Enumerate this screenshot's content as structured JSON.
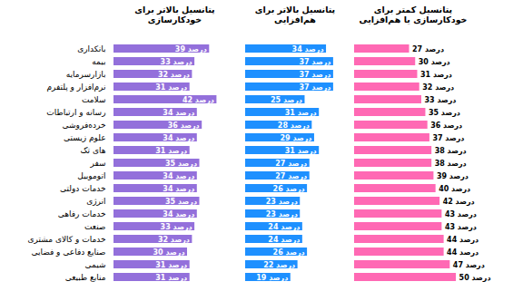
{
  "chart_data": [
    {
      "type": "bar",
      "orientation": "horizontal",
      "title": "پتانسیل بالاتر برای خودکارسازی",
      "categories": [
        "بانکداری",
        "بیمه",
        "بازارسرمایه",
        "نرم‌افزار و پلتفرم",
        "سلامت",
        "رسانه و ارتباطات",
        "خرده‌فروشی",
        "علوم زیستی",
        "های تک",
        "سفر",
        "اتوموبیل",
        "خدمات دولتی",
        "انرژی",
        "خدمات رفاهی",
        "صنعت",
        "خدمات و کالای مشتری",
        "صنایع دفاعی و فضایی",
        "شیمی",
        "منابع طبیعی"
      ],
      "values": [
        39,
        33,
        32,
        31,
        42,
        34,
        36,
        34,
        31,
        35,
        34,
        34,
        35,
        34,
        33,
        32,
        30,
        31,
        31
      ],
      "value_labels": [
        "39 درصد",
        "33 درصد",
        "32 درصد",
        "31 درصد",
        "42 درصد",
        "34 درصد",
        "36 درصد",
        "34 درصد",
        "31 درصد",
        "35 درصد",
        "34 درصد",
        "34 درصد",
        "35 درصد",
        "34 درصد",
        "33 درصد",
        "32 درصد",
        "30 درصد",
        "31 درصد",
        "31 درصد"
      ],
      "color": "#9370db",
      "xlim": [
        0,
        50
      ],
      "data_labels": true,
      "tick_labels": "y"
    },
    {
      "type": "bar",
      "orientation": "horizontal",
      "title": "پتانسیل بالاتر برای هم‌افزایی",
      "categories": [
        "بانکداری",
        "بیمه",
        "بازارسرمایه",
        "نرم‌افزار و پلتفرم",
        "سلامت",
        "رسانه و ارتباطات",
        "خرده‌فروشی",
        "علوم زیستی",
        "های تک",
        "سفر",
        "اتوموبیل",
        "خدمات دولتی",
        "انرژی",
        "خدمات رفاهی",
        "صنعت",
        "خدمات و کالای مشتری",
        "صنایع دفاعی و فضایی",
        "شیمی",
        "منابع طبیعی"
      ],
      "values": [
        34,
        37,
        37,
        37,
        25,
        31,
        28,
        29,
        31,
        27,
        27,
        26,
        23,
        23,
        24,
        24,
        26,
        22,
        19
      ],
      "value_labels": [
        "34 درصد",
        "37 درصد",
        "37 درصد",
        "37 درصد",
        "25 درصد",
        "31 درصد",
        "28 درصد",
        "29 درصد",
        "31 درصد",
        "27 درصد",
        "27 درصد",
        "26 درصد",
        "23 درصد",
        "23 درصد",
        "24 درصد",
        "24 درصد",
        "26 درصد",
        "22 درصد",
        "19 درصد"
      ],
      "color": "#1e90ff",
      "xlim": [
        0,
        42
      ],
      "data_labels": true,
      "tick_labels": false
    },
    {
      "type": "bar",
      "orientation": "horizontal",
      "title": "پتانسیل کمتر برای خودکارسازی یا هم‌افزایی",
      "categories": [
        "بانکداری",
        "بیمه",
        "بازارسرمایه",
        "نرم‌افزار و پلتفرم",
        "سلامت",
        "رسانه و ارتباطات",
        "خرده‌فروشی",
        "علوم زیستی",
        "های تک",
        "سفر",
        "اتوموبیل",
        "خدمات دولتی",
        "انرژی",
        "خدمات رفاهی",
        "صنعت",
        "خدمات و کالای مشتری",
        "صنایع دفاعی و فضایی",
        "شیمی",
        "منابع طبیعی"
      ],
      "values": [
        27,
        30,
        31,
        32,
        33,
        35,
        36,
        37,
        38,
        38,
        39,
        40,
        42,
        43,
        43,
        44,
        44,
        47,
        50
      ],
      "value_labels": [
        "27 درصد",
        "30 درصد",
        "31 درصد",
        "32 درصد",
        "33 درصد",
        "35 درصد",
        "36 درصد",
        "37 درصد",
        "38 درصد",
        "38 درصد",
        "39 درصد",
        "40 درصد",
        "42 درصد",
        "43 درصد",
        "43 درصد",
        "44 درصد",
        "44 درصد",
        "47 درصد",
        "50 درصد"
      ],
      "color": "#ff69b4",
      "xlim": [
        0,
        58
      ],
      "data_labels": true,
      "tick_labels": false
    }
  ]
}
